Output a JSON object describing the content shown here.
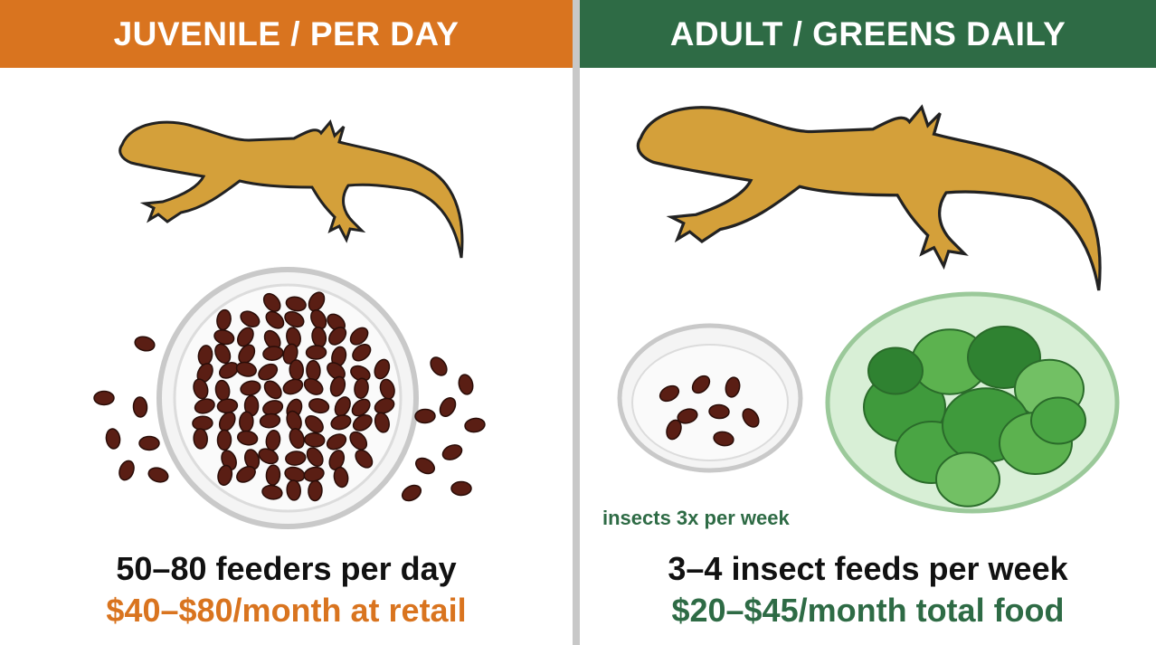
{
  "panels": [
    {
      "header": "JUVENILE / PER DAY",
      "line1": "50–80 feeders per day",
      "line2": "$40–$80/month at retail"
    },
    {
      "header": "ADULT / GREENS DAILY",
      "caption": "insects 3x per week",
      "line1": "3–4 insect feeds per week",
      "line2": "$20–$45/month total food"
    }
  ]
}
